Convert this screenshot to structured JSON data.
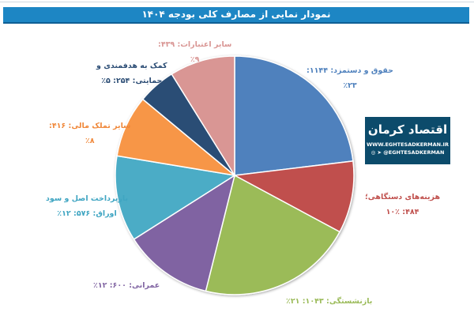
{
  "title": "نمودار نمایی از مصارف کلی بودجه ۱۴۰۴",
  "logo": {
    "name": "اقتصاد کرمان",
    "url": "WWW.EGHTESADKERMAN.IR",
    "handle": "@EGHTESADKERMAN",
    "icons": [
      "instagram-icon",
      "telegram-icon"
    ]
  },
  "chart_data": {
    "type": "pie",
    "title": "نمودار نمایی از مصارف کلی بودجه ۱۴۰۴",
    "start": "top",
    "direction": "clockwise",
    "slices": [
      {
        "name": "حقوق و دستمزد",
        "value": 1144,
        "percent": 23,
        "color": "#4f81bd",
        "line1": "حقوق و دستمزد: ۱۱۴۴:",
        "line2": "٪۲۳"
      },
      {
        "name": "هزینه‌های دستگاهی",
        "value": 484,
        "percent": 10,
        "color": "#c0504d",
        "line1": "هزینه‌های دستگاهی؛",
        "line2": "۴۸۴: ۱۰٪"
      },
      {
        "name": "بازنشستگی",
        "value": 1043,
        "percent": 21,
        "color": "#9bbb59",
        "line1": "بازنشستگی: ۱۰۴۳: ۲۱٪",
        "line2": ""
      },
      {
        "name": "عمرانی",
        "value": 600,
        "percent": 12,
        "color": "#8064a2",
        "line1": "عمرانی: ۶۰۰: ۱۲٪",
        "line2": ""
      },
      {
        "name": "بازپرداخت اصل و سود اوراق",
        "value": 576,
        "percent": 12,
        "color": "#4bacc6",
        "line1": "بازپرداخت اصل و سود",
        "line2": "اوراق: ۵۷۶: ۱۲٪"
      },
      {
        "name": "سایر تملک مالی",
        "value": 416,
        "percent": 8,
        "color": "#f79646",
        "line1": "سایر تملک مالی: ۴۱۶:",
        "line2": "٪۸"
      },
      {
        "name": "کمک به هدفمندی و حمایتی",
        "value": 254,
        "percent": 5,
        "color": "#2c4d75",
        "line1": "کمک به هدفمندی و",
        "line2": "حمایتی: ۲۵۴: ۵٪"
      },
      {
        "name": "سایر اعتبارات",
        "value": 439,
        "percent": 9,
        "color": "#d99694",
        "line1": "سایر اعتبارات: ۴۳۹:",
        "line2": "٪۹"
      }
    ]
  }
}
